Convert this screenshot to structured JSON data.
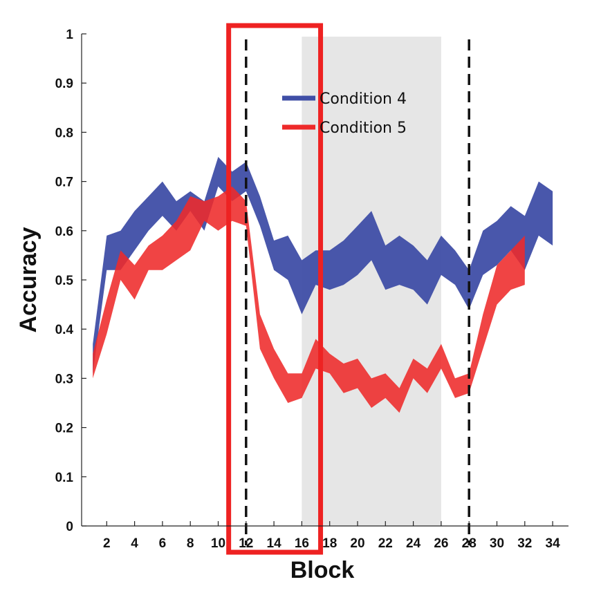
{
  "chart_data": {
    "type": "area",
    "xlabel": "Block",
    "ylabel": "Accuracy",
    "xlim": [
      0,
      35
    ],
    "ylim": [
      0,
      1
    ],
    "xticks": [
      2,
      4,
      6,
      8,
      10,
      12,
      14,
      16,
      18,
      20,
      22,
      24,
      26,
      28,
      30,
      32,
      34
    ],
    "yticks": [
      0,
      0.1,
      0.2,
      0.3,
      0.4,
      0.5,
      0.6,
      0.7,
      0.8,
      0.9,
      1
    ],
    "ytick_labels": [
      "0",
      "0.1",
      "0.2",
      "0.3",
      "0.4",
      "0.5",
      "0.6",
      "0.7",
      "0.8",
      "0.9",
      "1"
    ],
    "legend_position": "top-center",
    "shaded_region": {
      "x_start": 16,
      "x_end": 26,
      "color": "#e6e6e6"
    },
    "dashed_lines_x": [
      12,
      28
    ],
    "highlight_box": {
      "x_start": 11,
      "x_end": 17,
      "color": "#ee2222"
    },
    "series": [
      {
        "name": "Condition 4",
        "color": "#3f4ea6",
        "x": [
          1,
          2,
          3,
          4,
          5,
          6,
          7,
          8,
          9,
          10,
          11,
          12,
          13,
          14,
          15,
          16,
          17,
          18,
          19,
          20,
          21,
          22,
          23,
          24,
          25,
          26,
          27,
          28,
          29,
          30,
          31,
          32,
          33,
          34
        ],
        "upper": [
          0.37,
          0.59,
          0.6,
          0.64,
          0.67,
          0.7,
          0.66,
          0.68,
          0.66,
          0.75,
          0.72,
          0.74,
          0.67,
          0.58,
          0.59,
          0.54,
          0.56,
          0.56,
          0.58,
          0.61,
          0.64,
          0.57,
          0.59,
          0.57,
          0.54,
          0.59,
          0.56,
          0.52,
          0.6,
          0.62,
          0.65,
          0.63,
          0.7,
          0.68
        ],
        "lower": [
          0.31,
          0.52,
          0.52,
          0.56,
          0.6,
          0.63,
          0.6,
          0.64,
          0.6,
          0.69,
          0.66,
          0.68,
          0.61,
          0.52,
          0.5,
          0.43,
          0.49,
          0.48,
          0.49,
          0.51,
          0.54,
          0.48,
          0.49,
          0.48,
          0.45,
          0.51,
          0.49,
          0.44,
          0.51,
          0.53,
          0.56,
          0.52,
          0.59,
          0.57
        ]
      },
      {
        "name": "Condition 5",
        "color": "#ee2a2a",
        "x": [
          1,
          2,
          3,
          4,
          5,
          6,
          7,
          8,
          9,
          10,
          11,
          12,
          13,
          14,
          15,
          16,
          17,
          18,
          19,
          20,
          21,
          22,
          23,
          24,
          25,
          26,
          27,
          28,
          29,
          30,
          31,
          32
        ],
        "upper": [
          0.35,
          0.46,
          0.56,
          0.53,
          0.57,
          0.59,
          0.62,
          0.67,
          0.66,
          0.67,
          0.69,
          0.66,
          0.43,
          0.36,
          0.31,
          0.31,
          0.38,
          0.35,
          0.33,
          0.34,
          0.3,
          0.31,
          0.28,
          0.34,
          0.32,
          0.37,
          0.3,
          0.31,
          0.43,
          0.53,
          0.56,
          0.59
        ],
        "lower": [
          0.3,
          0.39,
          0.5,
          0.46,
          0.52,
          0.52,
          0.54,
          0.56,
          0.62,
          0.6,
          0.62,
          0.61,
          0.36,
          0.3,
          0.25,
          0.26,
          0.32,
          0.31,
          0.27,
          0.28,
          0.24,
          0.26,
          0.23,
          0.3,
          0.27,
          0.32,
          0.26,
          0.27,
          0.36,
          0.45,
          0.48,
          0.49
        ]
      }
    ]
  }
}
